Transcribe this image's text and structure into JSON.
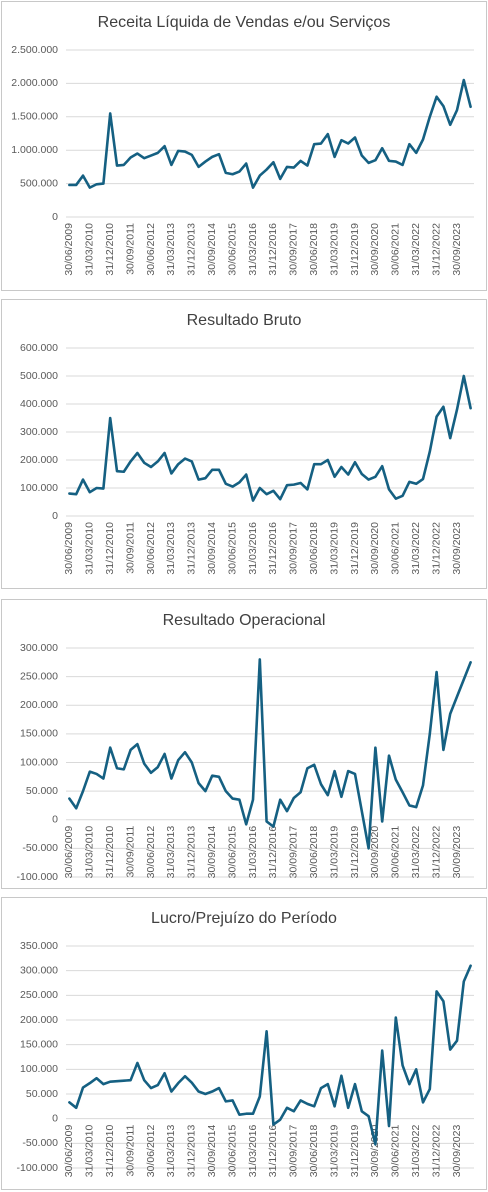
{
  "chart_data": [
    {
      "type": "line",
      "title": "Receita Líquida de Vendas e/ou Serviços",
      "color": "#156082",
      "grid": true,
      "categories": [
        "30/06/2009",
        null,
        null,
        "31/03/2010",
        null,
        null,
        "31/12/2010",
        null,
        null,
        "30/09/2011",
        null,
        null,
        "30/06/2012",
        null,
        null,
        "31/03/2013",
        null,
        null,
        "31/12/2013",
        null,
        null,
        "30/09/2014",
        null,
        null,
        "30/06/2015",
        null,
        null,
        "31/03/2016",
        null,
        null,
        "31/12/2016",
        null,
        null,
        "30/09/2017",
        null,
        null,
        "30/06/2018",
        null,
        null,
        "31/03/2019",
        null,
        null,
        "31/12/2019",
        null,
        null,
        "30/09/2020",
        null,
        null,
        "30/06/2021",
        null,
        null,
        "31/03/2022",
        null,
        null,
        "31/12/2022",
        null,
        null,
        "30/09/2023",
        null,
        null
      ],
      "values": [
        480000,
        480000,
        620000,
        440000,
        490000,
        500000,
        1550000,
        770000,
        780000,
        890000,
        950000,
        880000,
        920000,
        960000,
        1060000,
        780000,
        990000,
        980000,
        930000,
        750000,
        830000,
        900000,
        940000,
        660000,
        640000,
        680000,
        800000,
        440000,
        620000,
        710000,
        820000,
        570000,
        750000,
        740000,
        840000,
        770000,
        1090000,
        1100000,
        1240000,
        900000,
        1150000,
        1100000,
        1190000,
        920000,
        810000,
        850000,
        1030000,
        840000,
        830000,
        780000,
        1090000,
        960000,
        1160000,
        1500000,
        1800000,
        1660000,
        1380000,
        1600000,
        2050000,
        1650000
      ],
      "ylim": [
        0,
        2500000
      ],
      "yticks": [
        0,
        {
          "value": 500000,
          "label": "500.000"
        },
        {
          "value": 1000000,
          "label": "1.000.000"
        },
        {
          "value": 1500000,
          "label": "1.500.000"
        },
        {
          "value": 2000000,
          "label": "2.000.000"
        },
        {
          "value": 2500000,
          "label": "2.500.000"
        }
      ]
    },
    {
      "type": "line",
      "title": "Resultado Bruto",
      "color": "#156082",
      "grid": true,
      "categories": [
        "30/06/2009",
        null,
        null,
        "31/03/2010",
        null,
        null,
        "31/12/2010",
        null,
        null,
        "30/09/2011",
        null,
        null,
        "30/06/2012",
        null,
        null,
        "31/03/2013",
        null,
        null,
        "31/12/2013",
        null,
        null,
        "30/09/2014",
        null,
        null,
        "30/06/2015",
        null,
        null,
        "31/03/2016",
        null,
        null,
        "31/12/2016",
        null,
        null,
        "30/09/2017",
        null,
        null,
        "30/06/2018",
        null,
        null,
        "31/03/2019",
        null,
        null,
        "31/12/2019",
        null,
        null,
        "30/09/2020",
        null,
        null,
        "30/06/2021",
        null,
        null,
        "31/03/2022",
        null,
        null,
        "31/12/2022",
        null,
        null,
        "30/09/2023",
        null,
        null
      ],
      "values": [
        80000,
        78000,
        130000,
        85000,
        100000,
        98000,
        350000,
        160000,
        158000,
        195000,
        225000,
        190000,
        175000,
        195000,
        225000,
        152000,
        185000,
        205000,
        195000,
        130000,
        135000,
        165000,
        165000,
        115000,
        105000,
        120000,
        148000,
        55000,
        100000,
        78000,
        90000,
        60000,
        110000,
        112000,
        118000,
        95000,
        185000,
        185000,
        200000,
        140000,
        175000,
        148000,
        192000,
        150000,
        130000,
        140000,
        178000,
        95000,
        62000,
        72000,
        122000,
        115000,
        132000,
        230000,
        355000,
        390000,
        278000,
        380000,
        500000,
        385000
      ],
      "ylim": [
        0,
        600000
      ],
      "yticks": [
        0,
        {
          "value": 100000,
          "label": "100.000"
        },
        {
          "value": 200000,
          "label": "200.000"
        },
        {
          "value": 300000,
          "label": "300.000"
        },
        {
          "value": 400000,
          "label": "400.000"
        },
        {
          "value": 500000,
          "label": "500.000"
        },
        {
          "value": 600000,
          "label": "600.000"
        }
      ]
    },
    {
      "type": "line",
      "title": "Resultado Operacional",
      "color": "#156082",
      "grid": true,
      "categories": [
        "30/06/2009",
        null,
        null,
        "31/03/2010",
        null,
        null,
        "31/12/2010",
        null,
        null,
        "30/09/2011",
        null,
        null,
        "30/06/2012",
        null,
        null,
        "31/03/2013",
        null,
        null,
        "31/12/2013",
        null,
        null,
        "30/09/2014",
        null,
        null,
        "30/06/2015",
        null,
        null,
        "31/03/2016",
        null,
        null,
        "31/12/2016",
        null,
        null,
        "30/09/2017",
        null,
        null,
        "30/06/2018",
        null,
        null,
        "31/03/2019",
        null,
        null,
        "31/12/2019",
        null,
        null,
        "30/09/2020",
        null,
        null,
        "30/06/2021",
        null,
        null,
        "31/03/2022",
        null,
        null,
        "31/12/2022",
        null,
        null,
        "30/09/2023",
        null,
        null
      ],
      "values": [
        37000,
        20000,
        50000,
        84000,
        80000,
        72000,
        126000,
        90000,
        88000,
        122000,
        132000,
        98000,
        82000,
        92000,
        115000,
        72000,
        104000,
        118000,
        100000,
        64000,
        50000,
        77000,
        75000,
        50000,
        37000,
        35000,
        -8000,
        35000,
        280000,
        -3000,
        -12000,
        35000,
        15000,
        38000,
        48000,
        90000,
        96000,
        62000,
        43000,
        85000,
        40000,
        85000,
        80000,
        15000,
        -50000,
        126000,
        -3000,
        112000,
        70000,
        48000,
        25000,
        22000,
        60000,
        150000,
        258000,
        122000,
        185000,
        215000,
        245000,
        275000
      ],
      "ylim": [
        -100000,
        300000
      ],
      "yticks": [
        {
          "value": -100000,
          "label": "-100.000"
        },
        {
          "value": -50000,
          "label": "-50.000"
        },
        0,
        {
          "value": 50000,
          "label": "50.000"
        },
        {
          "value": 100000,
          "label": "100.000"
        },
        {
          "value": 150000,
          "label": "150.000"
        },
        {
          "value": 200000,
          "label": "200.000"
        },
        {
          "value": 250000,
          "label": "250.000"
        },
        {
          "value": 300000,
          "label": "300.000"
        }
      ]
    },
    {
      "type": "line",
      "title": "Lucro/Prejuízo do Período",
      "color": "#156082",
      "grid": true,
      "categories": [
        "30/06/2009",
        null,
        null,
        "31/03/2010",
        null,
        null,
        "31/12/2010",
        null,
        null,
        "30/09/2011",
        null,
        null,
        "30/06/2012",
        null,
        null,
        "31/03/2013",
        null,
        null,
        "31/12/2013",
        null,
        null,
        "30/09/2014",
        null,
        null,
        "30/06/2015",
        null,
        null,
        "31/03/2016",
        null,
        null,
        "31/12/2016",
        null,
        null,
        "30/09/2017",
        null,
        null,
        "30/06/2018",
        null,
        null,
        "31/03/2019",
        null,
        null,
        "31/12/2019",
        null,
        null,
        "30/09/2020",
        null,
        null,
        "30/06/2021",
        null,
        null,
        "31/03/2022",
        null,
        null,
        "31/12/2022",
        null,
        null,
        "30/09/2023",
        null,
        null
      ],
      "values": [
        33000,
        22000,
        63000,
        72000,
        82000,
        70000,
        75000,
        76000,
        77000,
        78000,
        113000,
        78000,
        62000,
        68000,
        92000,
        55000,
        72000,
        86000,
        73000,
        55000,
        50000,
        55000,
        62000,
        35000,
        37000,
        8000,
        10000,
        10000,
        45000,
        177000,
        -12000,
        -2000,
        22000,
        15000,
        37000,
        30000,
        25000,
        62000,
        70000,
        25000,
        87000,
        22000,
        70000,
        15000,
        5000,
        -52000,
        138000,
        -15000,
        205000,
        108000,
        70000,
        100000,
        33000,
        60000,
        258000,
        238000,
        140000,
        158000,
        278000,
        310000
      ],
      "ylim": [
        -100000,
        350000
      ],
      "yticks": [
        {
          "value": -100000,
          "label": "-100.000"
        },
        {
          "value": -50000,
          "label": "-50.000"
        },
        0,
        {
          "value": 50000,
          "label": "50.000"
        },
        {
          "value": 100000,
          "label": "100.000"
        },
        {
          "value": 150000,
          "label": "150.000"
        },
        {
          "value": 200000,
          "label": "200.000"
        },
        {
          "value": 250000,
          "label": "250.000"
        },
        {
          "value": 300000,
          "label": "300.000"
        },
        {
          "value": 350000,
          "label": "350.000"
        }
      ]
    }
  ]
}
